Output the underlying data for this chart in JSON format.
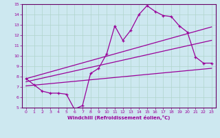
{
  "xlabel": "Windchill (Refroidissement éolien,°C)",
  "background_color": "#cde8f0",
  "grid_color": "#b0d4cc",
  "line_color": "#990099",
  "spine_color": "#660066",
  "xlim": [
    -0.5,
    23.5
  ],
  "ylim": [
    5,
    15
  ],
  "xticks": [
    0,
    1,
    2,
    3,
    4,
    5,
    6,
    7,
    8,
    9,
    10,
    11,
    12,
    13,
    14,
    15,
    16,
    17,
    18,
    19,
    20,
    21,
    22,
    23
  ],
  "yticks": [
    5,
    6,
    7,
    8,
    9,
    10,
    11,
    12,
    13,
    14,
    15
  ],
  "line1_x": [
    0,
    1,
    2,
    3,
    4,
    5,
    6,
    7,
    8,
    9,
    10,
    11,
    12,
    13,
    14,
    15,
    16,
    17,
    18,
    19,
    20,
    21,
    22,
    23
  ],
  "line1_y": [
    7.8,
    7.2,
    6.6,
    6.4,
    6.4,
    6.3,
    4.85,
    5.2,
    8.3,
    8.8,
    10.2,
    12.9,
    11.5,
    12.5,
    14.0,
    14.85,
    14.3,
    13.9,
    13.8,
    12.9,
    12.3,
    9.9,
    9.3,
    9.3
  ],
  "line2_x": [
    0,
    23
  ],
  "line2_y": [
    7.8,
    12.8
  ],
  "line3_x": [
    0,
    23
  ],
  "line3_y": [
    7.5,
    11.5
  ],
  "line4_x": [
    0,
    23
  ],
  "line4_y": [
    7.1,
    8.8
  ]
}
